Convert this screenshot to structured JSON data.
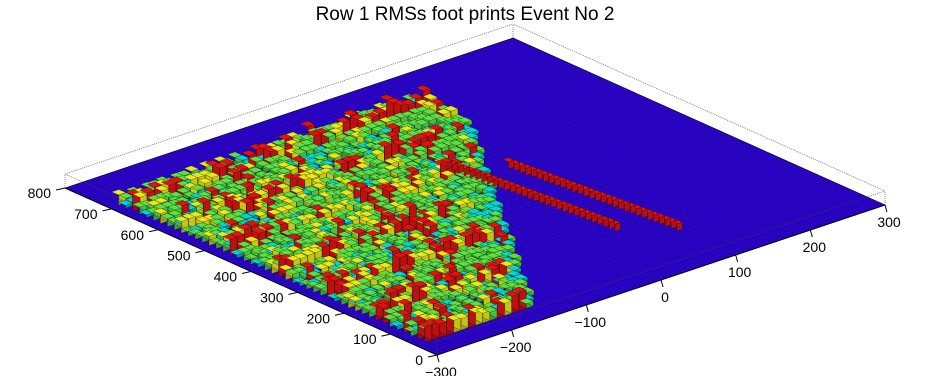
{
  "chart_data": {
    "type": "heatmap",
    "title": "Row 1  RMSs foot prints Event No 2",
    "xlabel": "",
    "ylabel": "",
    "zlabel": "",
    "x_axis": {
      "range": [
        0,
        800
      ],
      "ticks": [
        "0",
        "100",
        "200",
        "300",
        "400",
        "500",
        "600",
        "700",
        "800"
      ]
    },
    "y_axis": {
      "range": [
        -300,
        300
      ],
      "ticks": [
        "−300",
        "−200",
        "−100",
        "0",
        "100",
        "200",
        "300"
      ]
    },
    "style": "3D lego bar plot",
    "colors": {
      "floor": "#2b00d6",
      "low": "#00d7d7",
      "mid": "#5ce046",
      "high": "#e8e81c",
      "peak": "#e01313",
      "grid": "#1a1a1a"
    },
    "grid": true,
    "legend": "none"
  }
}
